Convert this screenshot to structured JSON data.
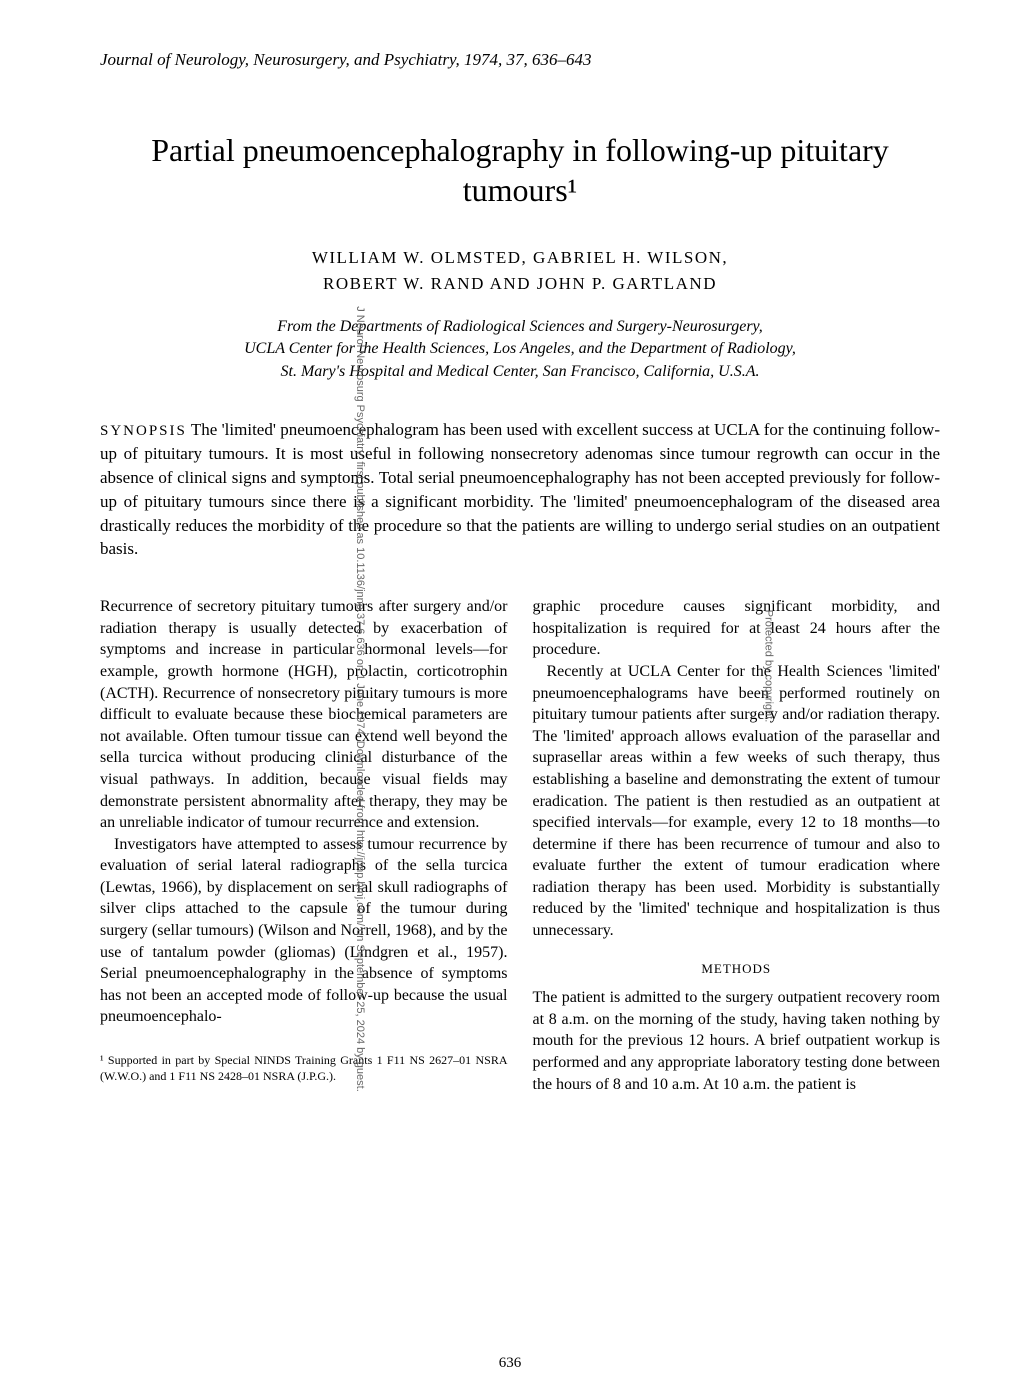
{
  "journal_header": "Journal of Neurology, Neurosurgery, and Psychiatry, 1974, 37, 636–643",
  "title": "Partial pneumoencephalography in following-up pituitary tumours¹",
  "authors_line1": "WILLIAM W. OLMSTED, GABRIEL H. WILSON,",
  "authors_line2": "ROBERT W. RAND AND JOHN P. GARTLAND",
  "affiliation_line1": "From the Departments of Radiological Sciences and Surgery-Neurosurgery,",
  "affiliation_line2": "UCLA Center for the Health Sciences, Los Angeles, and the Department of Radiology,",
  "affiliation_line3": "St. Mary's Hospital and Medical Center, San Francisco, California, U.S.A.",
  "synopsis_label": "SYNOPSIS",
  "synopsis_text": " The 'limited' pneumoencephalogram has been used with excellent success at UCLA for the continuing follow-up of pituitary tumours. It is most useful in following nonsecretory adenomas since tumour regrowth can occur in the absence of clinical signs and symptoms. Total serial pneumoencephalography has not been accepted previously for follow-up of pituitary tumours since there is a significant morbidity. The 'limited' pneumoencephalogram of the diseased area drastically reduces the morbidity of the procedure so that the patients are willing to undergo serial studies on an outpatient basis.",
  "left_col": {
    "p1": "Recurrence of secretory pituitary tumours after surgery and/or radiation therapy is usually detected by exacerbation of symptoms and increase in particular hormonal levels—for example, growth hormone (HGH), prolactin, corticotrophin (ACTH). Recurrence of nonsecretory pituitary tumours is more difficult to evaluate because these biochemical parameters are not available. Often tumour tissue can extend well beyond the sella turcica without producing clinical disturbance of the visual pathways. In addition, because visual fields may demonstrate persistent abnormality after therapy, they may be an unreliable indicator of tumour recurrence and extension.",
    "p2": "Investigators have attempted to assess tumour recurrence by evaluation of serial lateral radiographs of the sella turcica (Lewtas, 1966), by displacement on serial skull radiographs of silver clips attached to the capsule of the tumour during surgery (sellar tumours) (Wilson and Norrell, 1968), and by the use of tantalum powder (gliomas) (Lindgren et al., 1957). Serial pneumoencephalography in the absence of symptoms has not been an accepted mode of follow-up because the usual pneumoencephalo-"
  },
  "right_col": {
    "p1": "graphic procedure causes significant morbidity, and hospitalization is required for at least 24 hours after the procedure.",
    "p2": "Recently at UCLA Center for the Health Sciences 'limited' pneumoencephalograms have been performed routinely on pituitary tumour patients after surgery and/or radiation therapy. The 'limited' approach allows evaluation of the parasellar and suprasellar areas within a few weeks of such therapy, thus establishing a baseline and demonstrating the extent of tumour eradication. The patient is then restudied as an outpatient at specified intervals—for example, every 12 to 18 months—to determine if there has been recurrence of tumour and also to evaluate further the extent of tumour eradication where radiation therapy has been used. Morbidity is substantially reduced by the 'limited' technique and hospitalization is thus unnecessary."
  },
  "methods_heading": "METHODS",
  "methods_text": "The patient is admitted to the surgery outpatient recovery room at 8 a.m. on the morning of the study, having taken nothing by mouth for the previous 12 hours. A brief outpatient workup is performed and any appropriate laboratory testing done between the hours of 8 and 10 a.m. At 10 a.m. the patient is",
  "footnote": "¹ Supported in part by Special NINDS Training Grants 1 F11 NS 2627–01 NSRA (W.W.O.) and 1 F11 NS 2428–01 NSRA (J.P.G.).",
  "page_number": "636",
  "watermark": "J Neurol Neurosurg Psychiatry: first published as 10.1136/jnnp.37.6.636 on 1 June 1974. Downloaded from http://jnnp.bmj.com/ on September 25, 2024 by guest.",
  "protected_by": "Protected by copyright."
}
